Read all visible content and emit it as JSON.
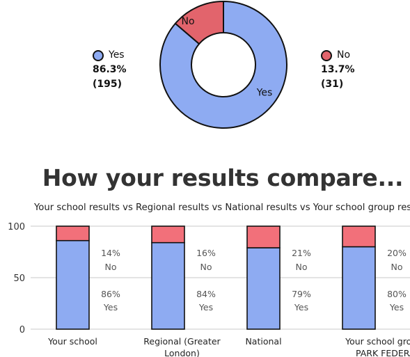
{
  "donut": {
    "slices": [
      {
        "label": "Yes",
        "percent": "86.3%",
        "count": "(195)",
        "value": 195,
        "color": "#8eabf2"
      },
      {
        "label": "No",
        "percent": "13.7%",
        "count": "(31)",
        "value": 31,
        "color": "#e2646c"
      }
    ]
  },
  "heading": "How your results compare...",
  "chart_data": {
    "type": "bar",
    "stacked": true,
    "title": "Your school results vs Regional results vs National results vs Your school group results",
    "categories": [
      [
        "Your school"
      ],
      [
        "Regional (Greater",
        "London)"
      ],
      [
        "National"
      ],
      [
        "Your school group (THE",
        "PARK FEDERATION"
      ]
    ],
    "series": [
      {
        "name": "Yes",
        "values": [
          86,
          84,
          79,
          80
        ],
        "color": "#8eabf2"
      },
      {
        "name": "No",
        "values": [
          14,
          16,
          21,
          20
        ],
        "color": "#f2707a"
      }
    ],
    "value_labels": [
      {
        "no": "14%",
        "yes": "86%"
      },
      {
        "no": "16%",
        "yes": "84%"
      },
      {
        "no": "21%",
        "yes": "79%"
      },
      {
        "no": "20%",
        "yes": "80%"
      }
    ],
    "yticks": [
      "0",
      "50",
      "100"
    ],
    "ylim": [
      0,
      100
    ]
  }
}
